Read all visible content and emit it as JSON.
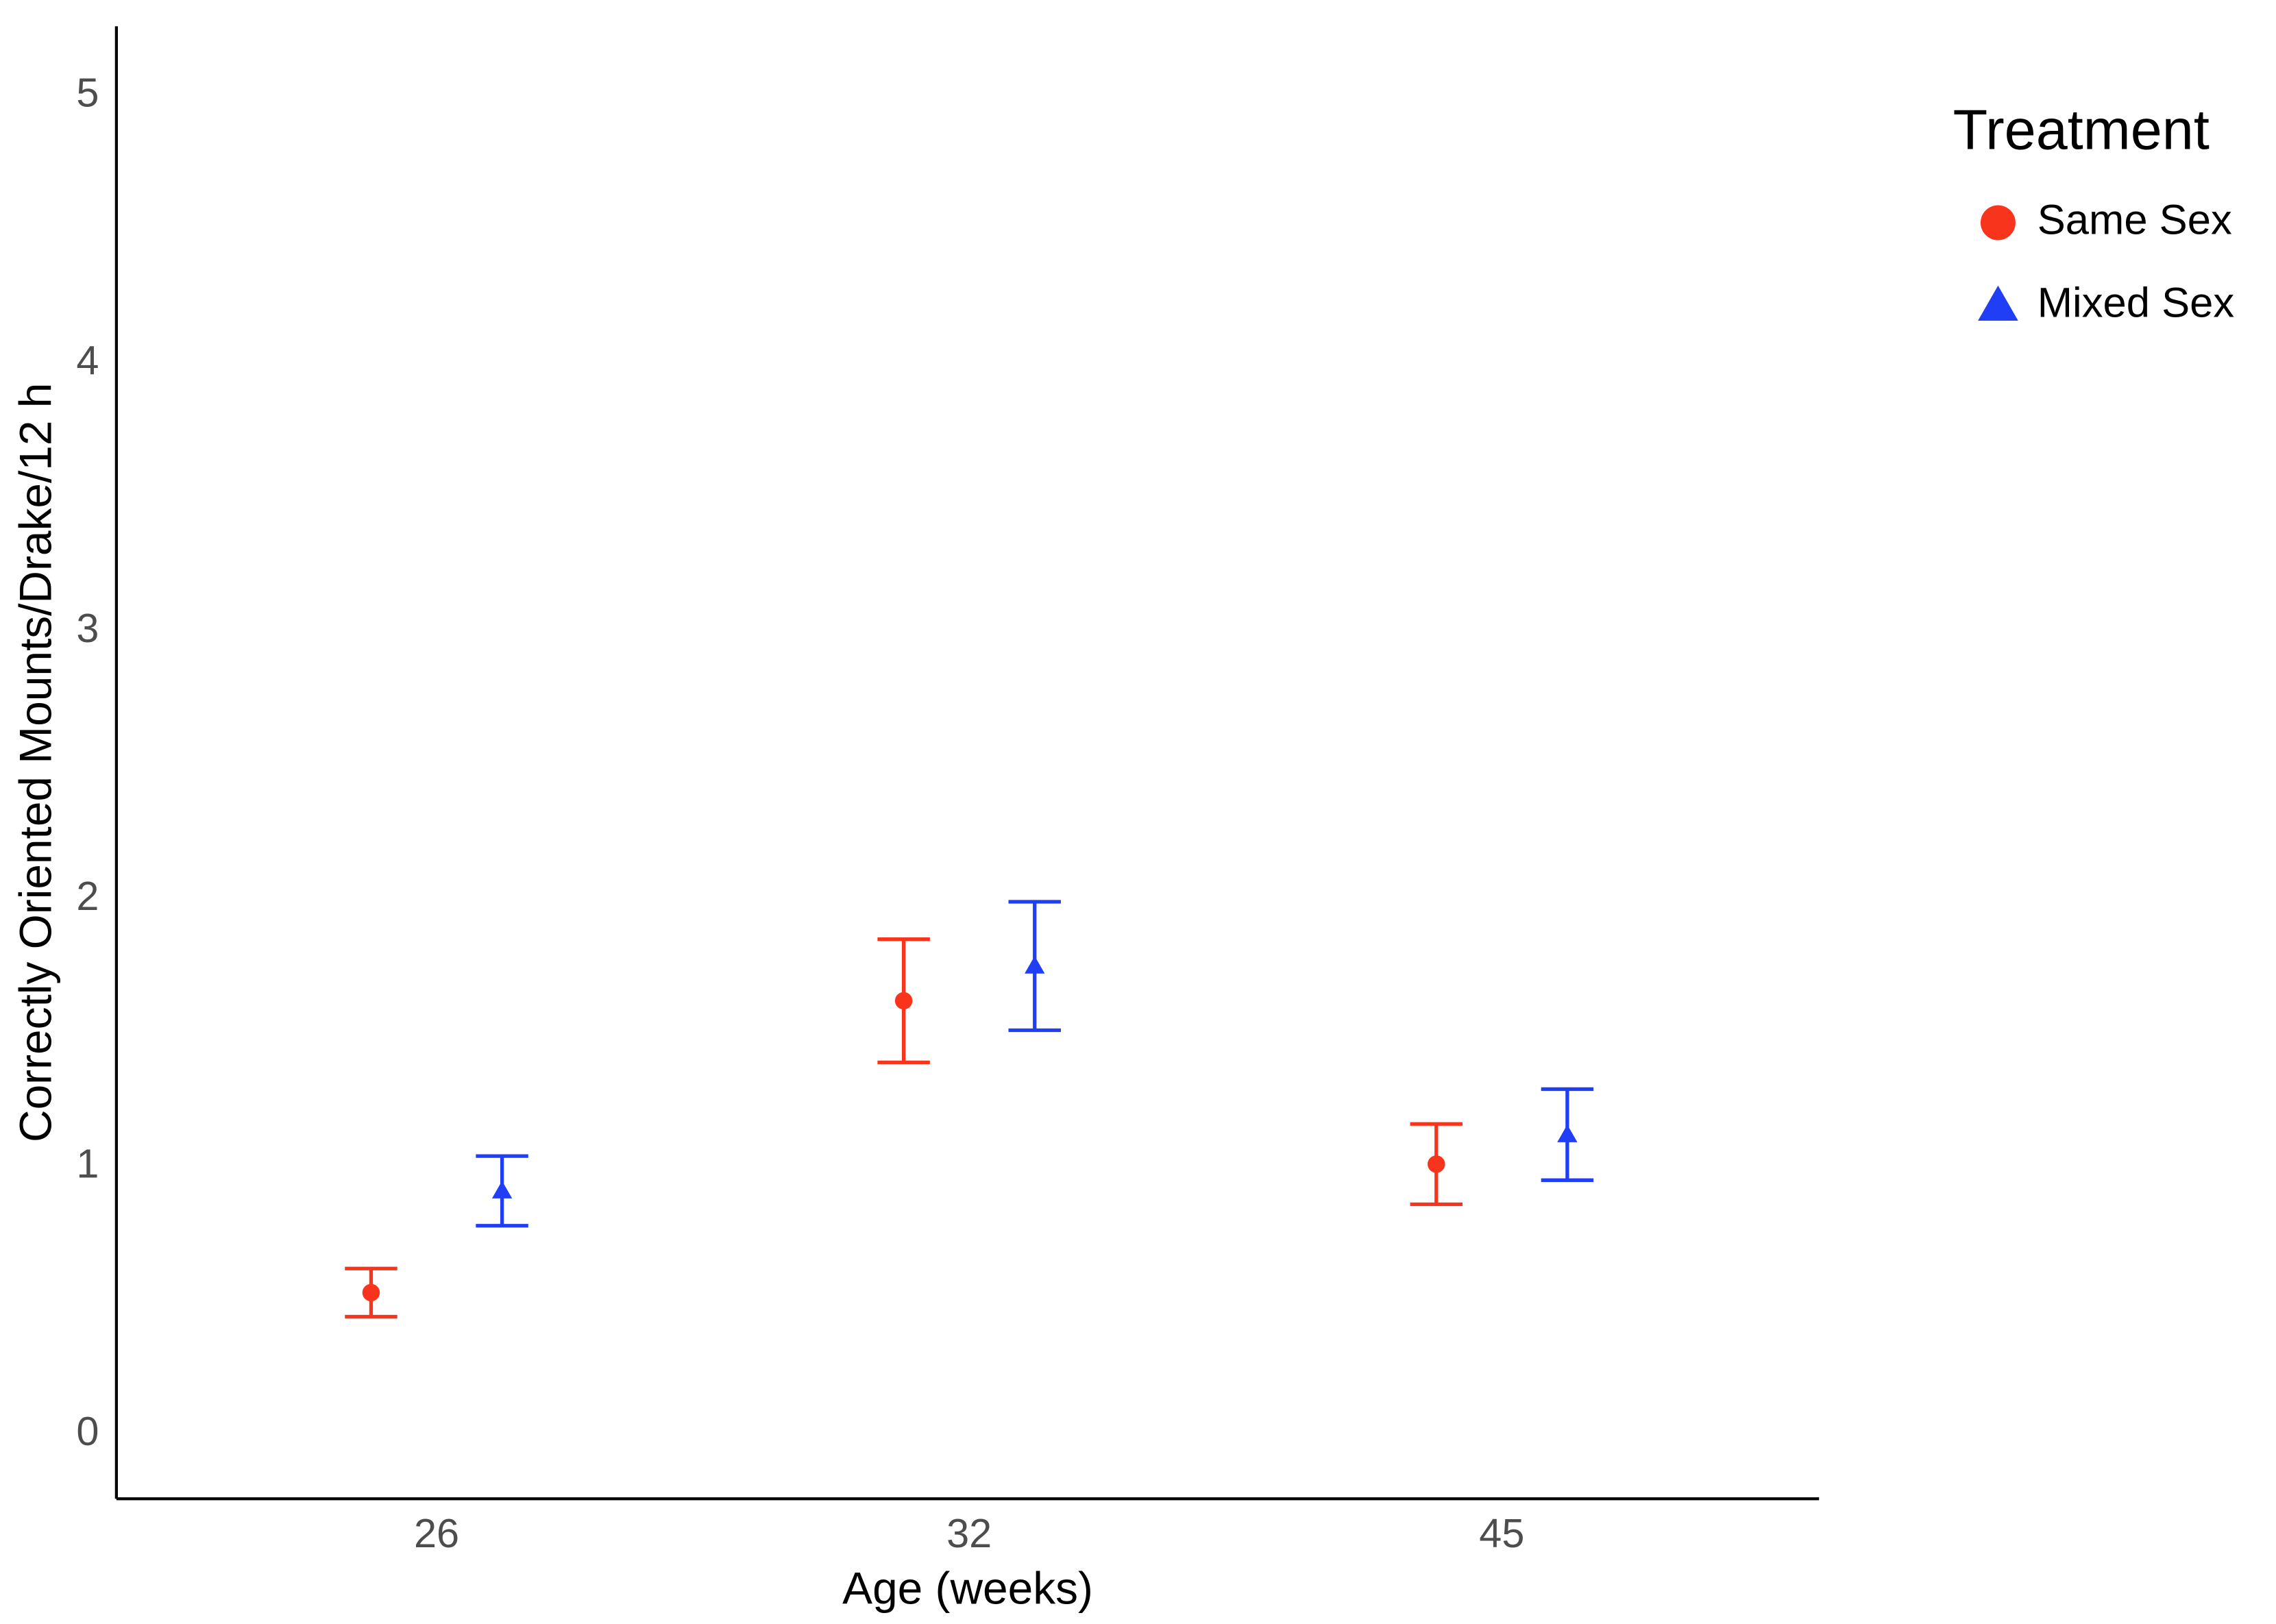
{
  "chart_data": {
    "type": "errorbar",
    "x_label": "Age (weeks)",
    "y_label": "Correctly Oriented Mounts/Drake/12 h",
    "categories": [
      "26",
      "32",
      "45"
    ],
    "series": [
      {
        "name": "Same Sex",
        "color": "#f8341c",
        "marker": "circle",
        "values": [
          0.53,
          1.62,
          1.01
        ],
        "errors": [
          0.09,
          0.23,
          0.15
        ]
      },
      {
        "name": "Mixed Sex",
        "color": "#1f3ef5",
        "marker": "triangle",
        "values": [
          0.91,
          1.75,
          1.12
        ],
        "errors": [
          0.13,
          0.24,
          0.17
        ]
      }
    ],
    "ylim": [
      -0.24,
      5.26
    ],
    "yticks": [
      0,
      1,
      2,
      3,
      4,
      5
    ],
    "grid": false,
    "legend": {
      "title": "Treatment",
      "position": "right"
    }
  }
}
